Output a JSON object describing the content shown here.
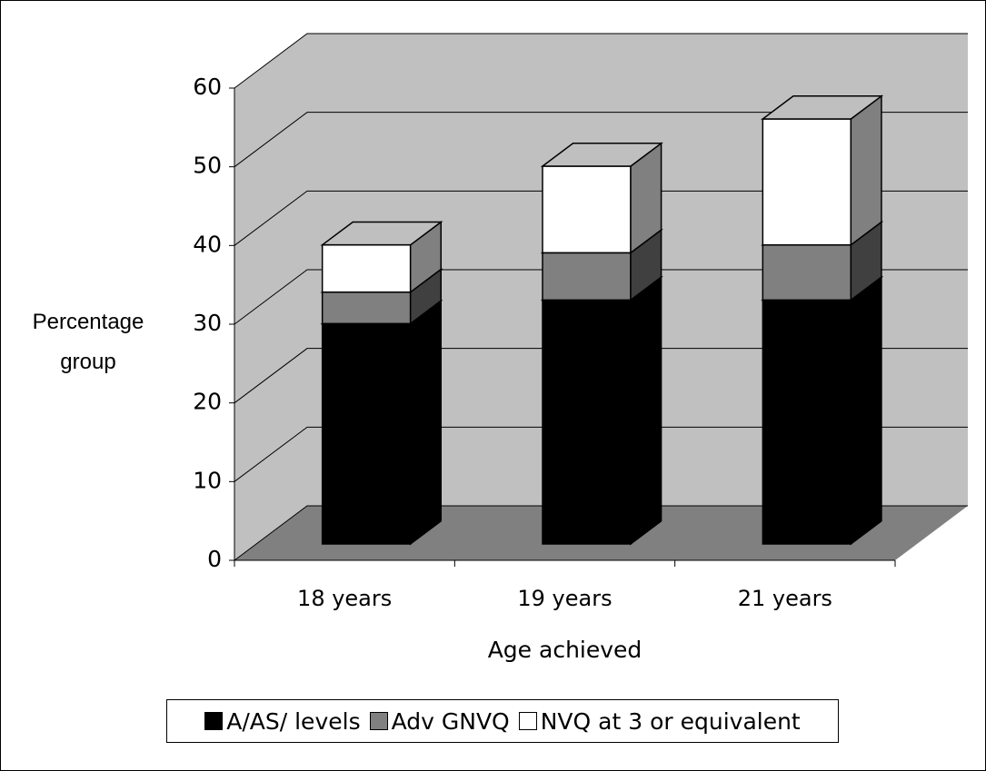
{
  "chart_data": {
    "type": "bar3d_stacked",
    "categories": [
      "18 years",
      "19 years",
      "21 years"
    ],
    "series": [
      {
        "name": "A/AS/ levels",
        "color": "#000000",
        "values": [
          28,
          31,
          31
        ]
      },
      {
        "name": "Adv GNVQ",
        "color": "#808080",
        "values": [
          4,
          6,
          7
        ]
      },
      {
        "name": "NVQ at 3 or equivalent",
        "color": "#ffffff",
        "values": [
          6,
          11,
          16
        ]
      }
    ],
    "x_label": "Age achieved",
    "y_label": "Percentage group",
    "ylim": [
      0,
      60
    ],
    "yticks": [
      0,
      10,
      20,
      30,
      40,
      50,
      60
    ],
    "grid": true,
    "legend": "bottom"
  }
}
